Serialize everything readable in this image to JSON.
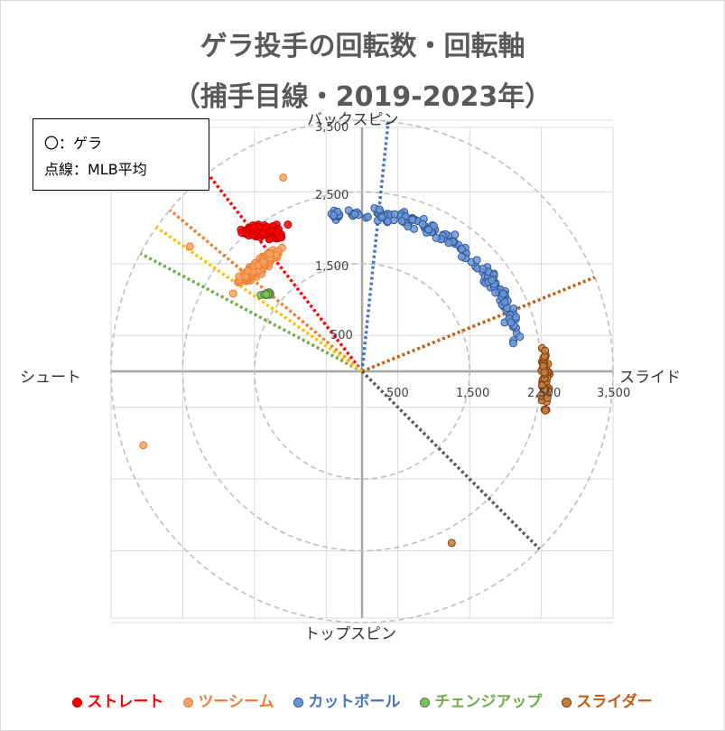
{
  "chart_data": {
    "type": "scatter",
    "title_line1": "ゲラ投手の回転数・回転軸",
    "title_line2": "（捕手目線・2019-2023年）",
    "note_line1": "〇：ゲラ",
    "note_line2": "点線：MLB平均",
    "axis_labels": {
      "top": "バックスピン",
      "bottom": "トップスピン",
      "left": "シュート",
      "right": "スライド"
    },
    "radial_ticks": [
      "500",
      "1,500",
      "2,500",
      "3,500"
    ],
    "x_ticks": [
      "500",
      "1,500",
      "2,500",
      "3,500"
    ],
    "rmax": 3500,
    "grid": true,
    "legend_position": "bottom",
    "series": [
      {
        "name": "ストレート",
        "color": "#ff0000",
        "stroke": "#c00000",
        "mlb_avg_angle_deg": 128,
        "points_center": [
          -1350,
          1950
        ],
        "spread": [
          380,
          150
        ],
        "count": 90
      },
      {
        "name": "ツーシーム",
        "color": "#f4a261",
        "stroke": "#ed7d31",
        "mlb_avg_angle_deg": 140,
        "points_center": [
          -1450,
          1450
        ],
        "spread": [
          380,
          300
        ],
        "count": 180
      },
      {
        "name": "カットボール",
        "color": "#6b96d6",
        "stroke": "#2f5597",
        "mlb_avg_angle_deg": 84,
        "arc_radius": 2200,
        "arc_deg": [
          10,
          102
        ],
        "count": 160
      },
      {
        "name": "チェンジアップ",
        "color": "#7fbf5f",
        "stroke": "#548235",
        "mlb_avg_angle_deg": 152,
        "points_center": [
          -1300,
          1080
        ],
        "spread": [
          150,
          60
        ],
        "count": 10
      },
      {
        "name": "スライダー",
        "color": "#c08040",
        "stroke": "#843c0c",
        "mlb_avg_angle_deg": 22,
        "points_center": [
          2550,
          -100
        ],
        "spread": [
          90,
          600
        ],
        "count": 60
      }
    ],
    "outliers": [
      {
        "series": "ツーシーム",
        "x": -3050,
        "y": -1030
      },
      {
        "series": "ツーシーム",
        "x": -1100,
        "y": 2700
      },
      {
        "series": "ツーシーム",
        "x": -2400,
        "y": 1740
      },
      {
        "series": "スライダー",
        "x": 1250,
        "y": -2390
      }
    ],
    "mlb_avg_extra": [
      {
        "color": "#595959",
        "angle_deg": -45
      },
      {
        "color": "#ffc000",
        "angle_deg": 145
      }
    ]
  }
}
